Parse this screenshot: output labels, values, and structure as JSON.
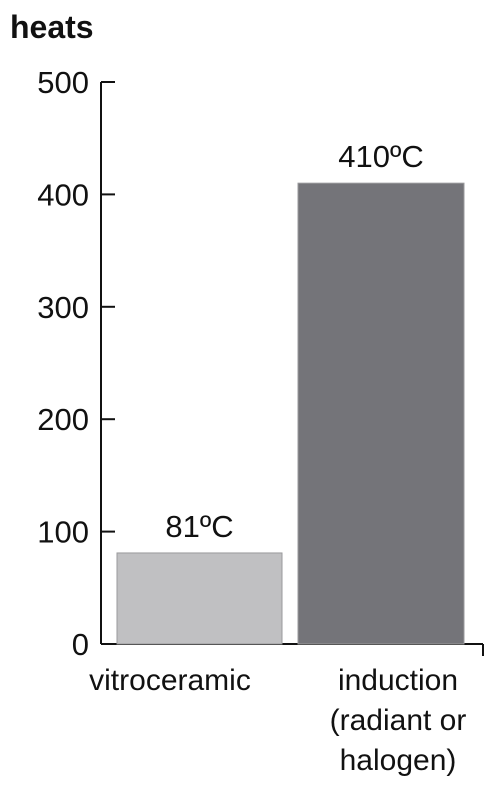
{
  "chart_data": {
    "type": "bar",
    "title": "heats",
    "categories": [
      [
        "vitroceramic"
      ],
      [
        "induction",
        "(radiant or",
        "halogen)"
      ]
    ],
    "values": [
      81,
      410
    ],
    "value_labels": [
      "81ºC",
      "410ºC"
    ],
    "colors": [
      "#c0c0c2",
      "#747479"
    ],
    "ylim": [
      0,
      500
    ],
    "yticks": [
      "0",
      "100",
      "200",
      "300",
      "400",
      "500"
    ],
    "grid": false
  }
}
